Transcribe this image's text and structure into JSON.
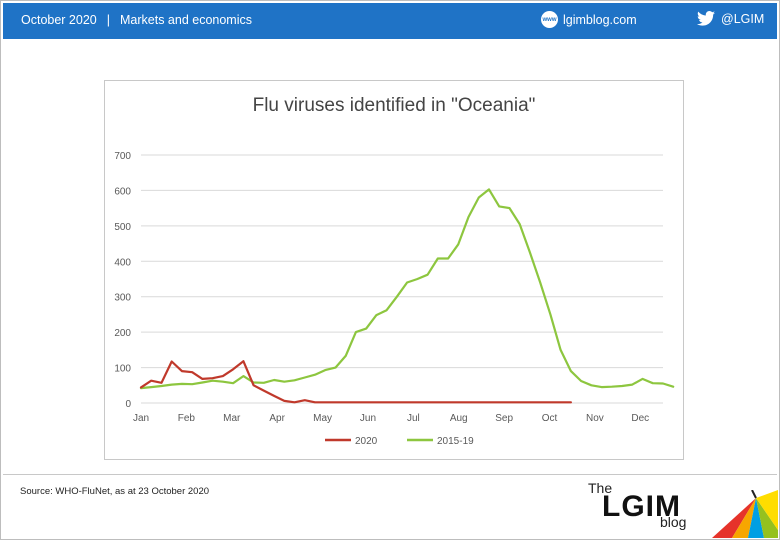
{
  "header": {
    "date": "October 2020",
    "separator": "|",
    "section": "Markets and economics",
    "site": "lgimblog.com",
    "site_icon": "www",
    "twitter": "@LGIM"
  },
  "footer": {
    "source": "Source: WHO-FluNet, as at 23 October 2020",
    "logo_the": "The",
    "logo_main": "LGIM",
    "logo_blog": "blog"
  },
  "colors": {
    "header_bg": "#1f73c6",
    "series_2020": "#c0392b",
    "series_2015_19": "#8dc63f"
  },
  "chart_data": {
    "type": "line",
    "title": "Flu viruses identified in \"Oceania\"",
    "xlabel": "",
    "ylabel": "",
    "ylim": [
      0,
      700
    ],
    "yticks": [
      0,
      100,
      200,
      300,
      400,
      500,
      600,
      700
    ],
    "month_labels": [
      "Jan",
      "Feb",
      "Mar",
      "Apr",
      "May",
      "Jun",
      "Jul",
      "Aug",
      "Sep",
      "Oct",
      "Nov",
      "Dec"
    ],
    "x_weeks": 52,
    "grid": "horizontal",
    "legend_position": "bottom",
    "series": [
      {
        "name": "2020",
        "color": "#c0392b",
        "values": [
          44,
          63,
          57,
          117,
          90,
          87,
          68,
          70,
          76,
          95,
          118,
          50,
          35,
          20,
          6,
          2,
          8,
          2,
          2,
          2,
          2,
          2,
          2,
          2,
          2,
          2,
          2,
          2,
          2,
          2,
          2,
          2,
          2,
          2,
          2,
          2,
          2,
          2,
          2,
          2,
          2,
          2,
          2
        ]
      },
      {
        "name": "2015-19",
        "color": "#8dc63f",
        "values": [
          42,
          45,
          48,
          52,
          54,
          53,
          58,
          63,
          60,
          56,
          76,
          58,
          57,
          65,
          60,
          64,
          72,
          80,
          93,
          100,
          133,
          200,
          210,
          248,
          262,
          300,
          340,
          350,
          362,
          408,
          408,
          448,
          525,
          580,
          603,
          555,
          550,
          505,
          425,
          340,
          250,
          150,
          90,
          62,
          50,
          45,
          46,
          48,
          52,
          68,
          56,
          55,
          46
        ]
      }
    ]
  }
}
